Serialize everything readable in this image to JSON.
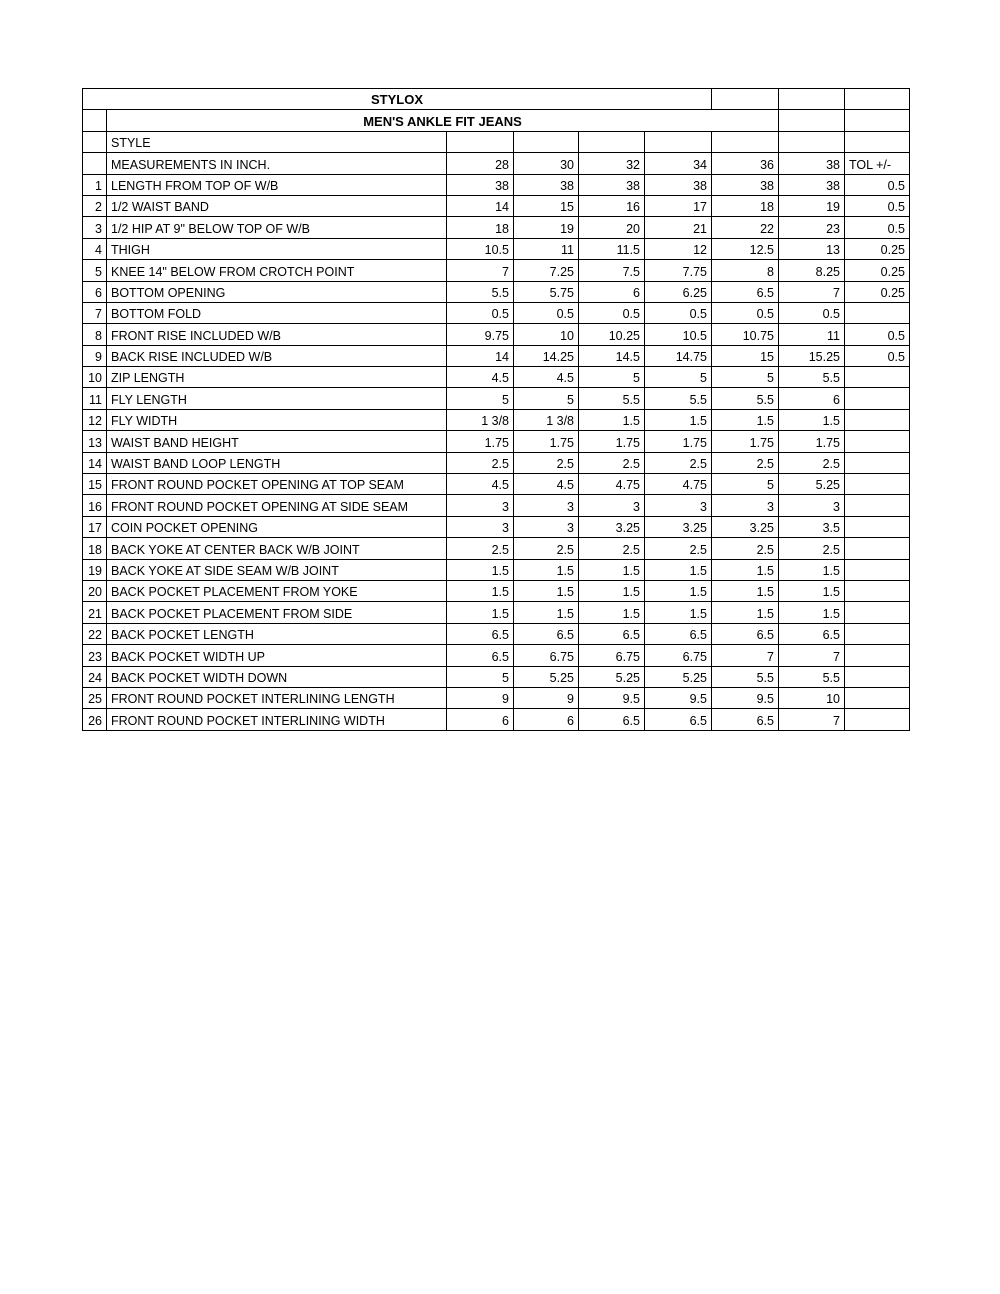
{
  "sheet": {
    "title": "STYLOX",
    "subtitle": "MEN'S ANKLE FIT JEANS",
    "style_label": "STYLE",
    "measurements_label": " MEASUREMENTS IN INCH.",
    "tolerance_label": "TOL +/-",
    "sizes": [
      "28",
      "30",
      "32",
      "34",
      "36",
      "38"
    ],
    "rows": [
      {
        "no": "1",
        "name": "LENGTH FROM TOP OF W/B",
        "values": [
          "38",
          "38",
          "38",
          "38",
          "38",
          "38"
        ],
        "tol": "0.5"
      },
      {
        "no": "2",
        "name": "1/2 WAIST BAND",
        "values": [
          "14",
          "15",
          "16",
          "17",
          "18",
          "19"
        ],
        "tol": "0.5"
      },
      {
        "no": "3",
        "name": "1/2 HIP AT 9\" BELOW TOP OF W/B",
        "values": [
          "18",
          "19",
          "20",
          "21",
          "22",
          "23"
        ],
        "tol": "0.5"
      },
      {
        "no": "4",
        "name": "THIGH",
        "values": [
          "10.5",
          "11",
          "11.5",
          "12",
          "12.5",
          "13"
        ],
        "tol": "0.25"
      },
      {
        "no": "5",
        "name": "KNEE 14\" BELOW FROM CROTCH POINT",
        "values": [
          "7",
          "7.25",
          "7.5",
          "7.75",
          "8",
          "8.25"
        ],
        "tol": "0.25"
      },
      {
        "no": "6",
        "name": "BOTTOM OPENING",
        "values": [
          "5.5",
          "5.75",
          "6",
          "6.25",
          "6.5",
          "7"
        ],
        "tol": "0.25"
      },
      {
        "no": "7",
        "name": "BOTTOM FOLD",
        "values": [
          "0.5",
          "0.5",
          "0.5",
          "0.5",
          "0.5",
          "0.5"
        ],
        "tol": ""
      },
      {
        "no": "8",
        "name": "FRONT RISE INCLUDED W/B",
        "values": [
          "9.75",
          "10",
          "10.25",
          "10.5",
          "10.75",
          "11"
        ],
        "tol": "0.5"
      },
      {
        "no": "9",
        "name": "BACK RISE INCLUDED W/B",
        "values": [
          "14",
          "14.25",
          "14.5",
          "14.75",
          "15",
          "15.25"
        ],
        "tol": "0.5"
      },
      {
        "no": "10",
        "name": "ZIP LENGTH",
        "values": [
          "4.5",
          "4.5",
          "5",
          "5",
          "5",
          "5.5"
        ],
        "tol": ""
      },
      {
        "no": "11",
        "name": "FLY LENGTH",
        "values": [
          "5",
          "5",
          "5.5",
          "5.5",
          "5.5",
          "6"
        ],
        "tol": ""
      },
      {
        "no": "12",
        "name": "FLY WIDTH",
        "values": [
          "1 3/8",
          "1 3/8",
          "1.5",
          "1.5",
          "1.5",
          "1.5"
        ],
        "tol": ""
      },
      {
        "no": "13",
        "name": "WAIST BAND HEIGHT",
        "values": [
          "1.75",
          "1.75",
          "1.75",
          "1.75",
          "1.75",
          "1.75"
        ],
        "tol": ""
      },
      {
        "no": "14",
        "name": "WAIST BAND LOOP LENGTH",
        "values": [
          "2.5",
          "2.5",
          "2.5",
          "2.5",
          "2.5",
          "2.5"
        ],
        "tol": ""
      },
      {
        "no": "15",
        "name": "FRONT ROUND POCKET OPENING AT TOP SEAM",
        "values": [
          "4.5",
          "4.5",
          "4.75",
          "4.75",
          "5",
          "5.25"
        ],
        "tol": ""
      },
      {
        "no": "16",
        "name": "FRONT ROUND POCKET OPENING AT SIDE SEAM",
        "values": [
          "3",
          "3",
          "3",
          "3",
          "3",
          "3"
        ],
        "tol": ""
      },
      {
        "no": "17",
        "name": "COIN POCKET OPENING",
        "values": [
          "3",
          "3",
          "3.25",
          "3.25",
          "3.25",
          "3.5"
        ],
        "tol": ""
      },
      {
        "no": "18",
        "name": "BACK YOKE AT CENTER BACK W/B JOINT",
        "values": [
          "2.5",
          "2.5",
          "2.5",
          "2.5",
          "2.5",
          "2.5"
        ],
        "tol": ""
      },
      {
        "no": "19",
        "name": "BACK YOKE AT SIDE SEAM W/B JOINT",
        "values": [
          "1.5",
          "1.5",
          "1.5",
          "1.5",
          "1.5",
          "1.5"
        ],
        "tol": ""
      },
      {
        "no": "20",
        "name": "BACK POCKET PLACEMENT FROM YOKE",
        "values": [
          "1.5",
          "1.5",
          "1.5",
          "1.5",
          "1.5",
          "1.5"
        ],
        "tol": ""
      },
      {
        "no": "21",
        "name": "BACK POCKET PLACEMENT FROM SIDE",
        "values": [
          "1.5",
          "1.5",
          "1.5",
          "1.5",
          "1.5",
          "1.5"
        ],
        "tol": ""
      },
      {
        "no": "22",
        "name": "BACK POCKET LENGTH",
        "values": [
          "6.5",
          "6.5",
          "6.5",
          "6.5",
          "6.5",
          "6.5"
        ],
        "tol": ""
      },
      {
        "no": "23",
        "name": "BACK POCKET WIDTH UP",
        "values": [
          "6.5",
          "6.75",
          "6.75",
          "6.75",
          "7",
          "7"
        ],
        "tol": ""
      },
      {
        "no": "24",
        "name": "BACK POCKET WIDTH DOWN",
        "values": [
          "5",
          "5.25",
          "5.25",
          "5.25",
          "5.5",
          "5.5"
        ],
        "tol": ""
      },
      {
        "no": "25",
        "name": "FRONT ROUND POCKET INTERLINING LENGTH",
        "values": [
          "9",
          "9",
          "9.5",
          "9.5",
          "9.5",
          "10"
        ],
        "tol": ""
      },
      {
        "no": "26",
        "name": "FRONT ROUND POCKET INTERLINING WIDTH",
        "values": [
          "6",
          "6",
          "6.5",
          "6.5",
          "6.5",
          "7"
        ],
        "tol": ""
      }
    ]
  },
  "colors": {
    "grid": "#000000",
    "background": "#ffffff",
    "text": "#000000"
  }
}
